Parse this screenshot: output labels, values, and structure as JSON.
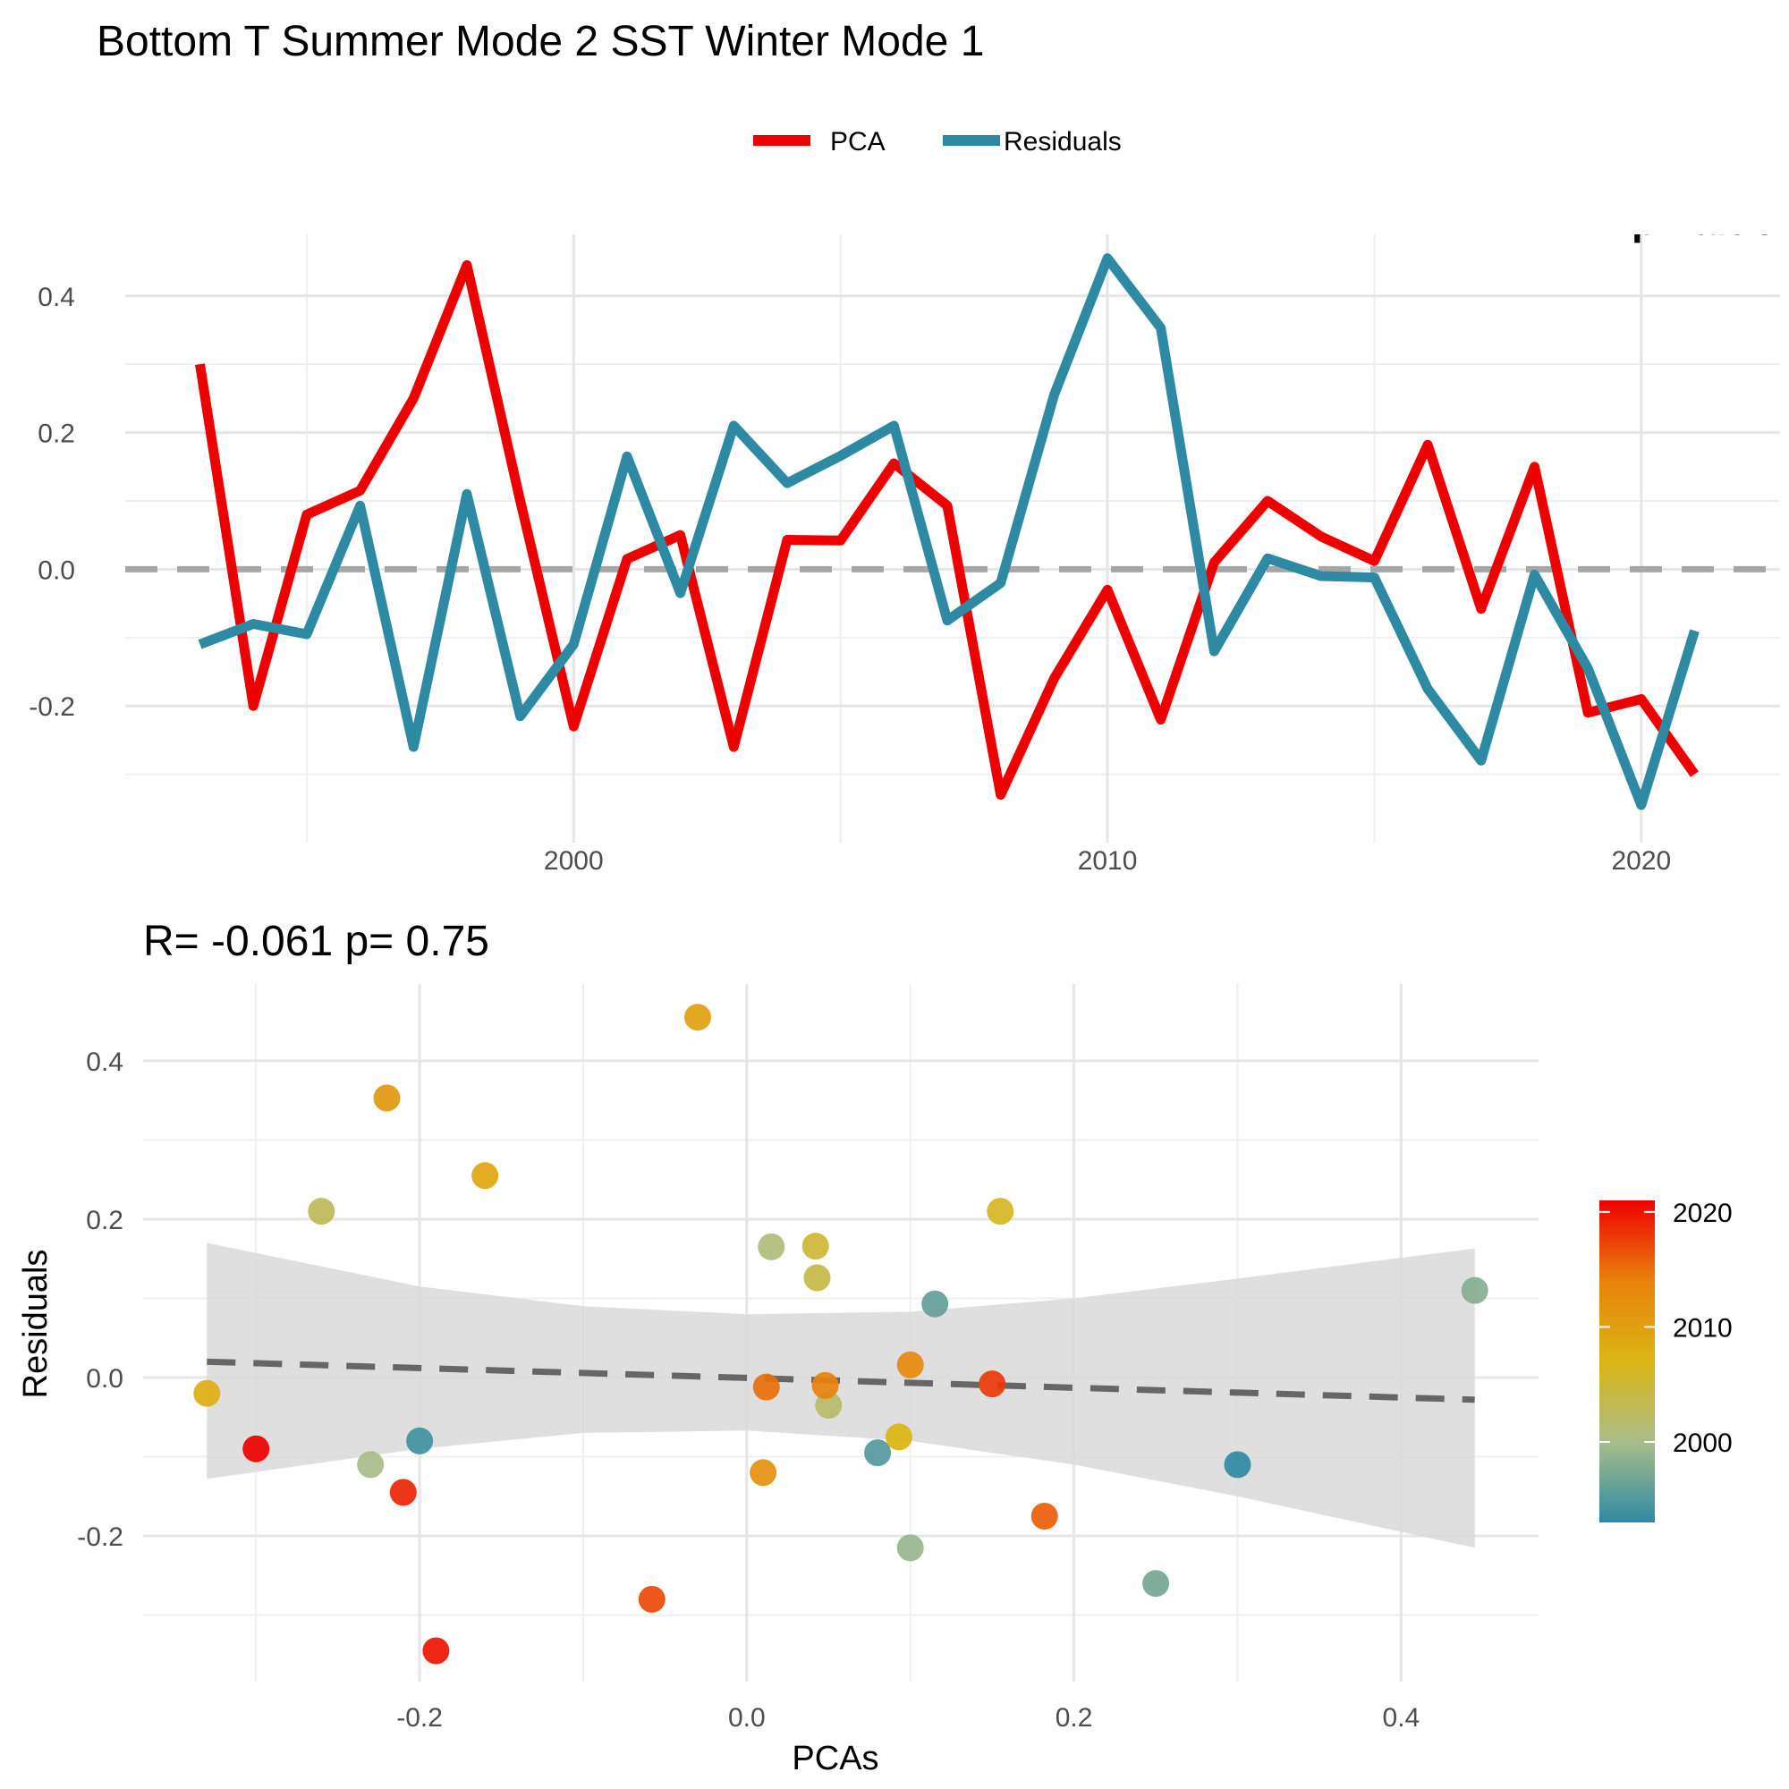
{
  "chart_data": [
    {
      "type": "line",
      "title": "Bottom T Summer Mode 2 SST Winter Mode 1",
      "corner_label": "r p-value",
      "x": [
        1993,
        1994,
        1995,
        1996,
        1997,
        1998,
        1999,
        2000,
        2001,
        2002,
        2003,
        2004,
        2005,
        2006,
        2007,
        2008,
        2009,
        2010,
        2011,
        2012,
        2013,
        2014,
        2015,
        2016,
        2017,
        2018,
        2019,
        2020,
        2021
      ],
      "series": [
        {
          "name": "PCA",
          "color": "#ee0000",
          "values": [
            0.3,
            -0.2,
            0.08,
            0.115,
            0.25,
            0.445,
            0.1,
            -0.23,
            0.015,
            0.05,
            -0.26,
            0.043,
            0.042,
            0.155,
            0.093,
            -0.33,
            -0.16,
            -0.03,
            -0.22,
            0.01,
            0.1,
            0.048,
            0.012,
            0.182,
            -0.058,
            0.15,
            -0.21,
            -0.19,
            -0.3
          ]
        },
        {
          "name": "Residuals",
          "color": "#2e8aa3",
          "values": [
            -0.11,
            -0.08,
            -0.095,
            0.093,
            -0.26,
            0.11,
            -0.215,
            -0.11,
            0.165,
            -0.035,
            0.21,
            0.126,
            0.166,
            0.21,
            -0.075,
            -0.02,
            0.255,
            0.455,
            0.353,
            -0.12,
            0.016,
            -0.01,
            -0.012,
            -0.175,
            -0.28,
            -0.008,
            -0.145,
            -0.345,
            -0.09
          ]
        }
      ],
      "xticks": [
        2000,
        2010,
        2020
      ],
      "yticks": [
        "-0.2",
        "0.0",
        "0.2",
        "0.4"
      ],
      "xlim": [
        1991.6,
        2022.6
      ],
      "ylim": [
        -0.4,
        0.49
      ],
      "hline": 0
    },
    {
      "type": "scatter",
      "subtitle": "R= -0.061  p= 0.75",
      "xlabel": "PCAs",
      "ylabel": "Residuals",
      "xlim": [
        -0.369,
        0.484
      ],
      "ylim": [
        -0.384,
        0.497
      ],
      "xticks": [
        "-0.2",
        "0.0",
        "0.2",
        "0.4"
      ],
      "yticks": [
        "-0.2",
        "0.0",
        "0.2",
        "0.4"
      ],
      "colorbar": {
        "ticks": [
          "2000",
          "2010",
          "2020"
        ],
        "range": [
          1993,
          2021
        ],
        "colors": [
          "#2e8aa3",
          "#a9bd8a",
          "#dbb512",
          "#e8820c",
          "#ee0000"
        ]
      },
      "fit": {
        "x0": -0.33,
        "y0": 0.02,
        "x1": 0.445,
        "y1": -0.028,
        "ci_top": [
          [
            -0.33,
            0.17
          ],
          [
            -0.2,
            0.115
          ],
          [
            -0.1,
            0.09
          ],
          [
            0.0,
            0.08
          ],
          [
            0.1,
            0.083
          ],
          [
            0.2,
            0.1
          ],
          [
            0.3,
            0.125
          ],
          [
            0.445,
            0.163
          ]
        ],
        "ci_bottom": [
          [
            -0.33,
            -0.128
          ],
          [
            -0.2,
            -0.09
          ],
          [
            -0.1,
            -0.07
          ],
          [
            0.0,
            -0.067
          ],
          [
            0.1,
            -0.08
          ],
          [
            0.2,
            -0.11
          ],
          [
            0.3,
            -0.15
          ],
          [
            0.445,
            -0.215
          ]
        ]
      }
    }
  ]
}
